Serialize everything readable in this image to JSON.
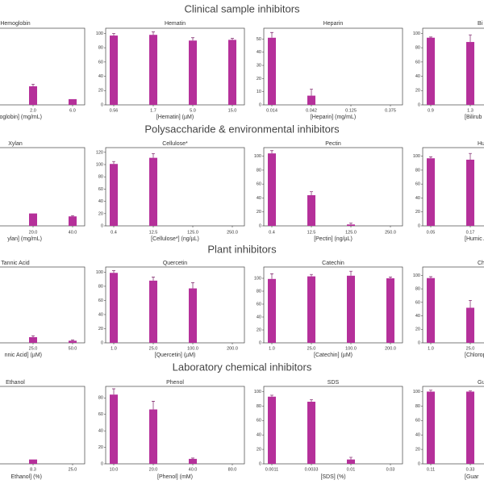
{
  "sections": [
    "Clinical sample inhibitors",
    "Polysaccharide & environmental inhibitors",
    "Plant inhibitors",
    "Laboratory chemical inhibitors"
  ],
  "chart_data": [
    {
      "type": "bar",
      "title": "Hemoglobin",
      "xlabel": "oglobin] (mg/mL)",
      "color": "#b5309a",
      "categories": [
        null,
        null,
        "2.0",
        "6.0"
      ],
      "values": [
        null,
        null,
        26,
        8
      ],
      "errors": [
        null,
        null,
        3,
        null
      ],
      "ylim": [
        0,
        105
      ]
    },
    {
      "type": "bar",
      "title": "Hematin",
      "xlabel": "[Hematin] (µM)",
      "color": "#b5309a",
      "categories": [
        "0.56",
        "1.7",
        "5.0",
        "15.0"
      ],
      "values": [
        97,
        98,
        90,
        91
      ],
      "errors": [
        3,
        4,
        4,
        2
      ],
      "ylim": [
        0,
        105
      ],
      "yticks": [
        0,
        20,
        40,
        60,
        80,
        100
      ]
    },
    {
      "type": "bar",
      "title": "Heparin",
      "xlabel": "[Heparin] (mg/mL)",
      "color": "#b5309a",
      "categories": [
        "0.014",
        "0.042",
        "0.125",
        "0.375"
      ],
      "values": [
        51,
        7,
        0,
        0
      ],
      "errors": [
        4,
        5,
        null,
        null
      ],
      "ylim": [
        0,
        57
      ],
      "yticks": [
        0,
        10,
        20,
        30,
        40,
        50
      ]
    },
    {
      "type": "bar",
      "title": "Bi",
      "xlabel": "[Bilirub",
      "color": "#b5309a",
      "categories": [
        "0.9",
        "1.3",
        null,
        null
      ],
      "values": [
        94,
        88,
        null,
        null
      ],
      "errors": [
        1,
        10,
        null,
        null
      ],
      "ylim": [
        0,
        105
      ],
      "yticks": [
        0,
        20,
        40,
        60,
        80,
        100
      ]
    },
    {
      "type": "bar",
      "title": "Xylan",
      "xlabel": "ylan] (mg/mL)",
      "color": "#b5309a",
      "categories": [
        null,
        null,
        "20.0",
        "40.0"
      ],
      "values": [
        null,
        null,
        17,
        13
      ],
      "errors": [
        null,
        null,
        null,
        1
      ],
      "ylim": [
        0,
        105
      ]
    },
    {
      "type": "bar",
      "title": "Cellulose*",
      "xlabel": "[Cellulose*] (ng/µL)",
      "color": "#b5309a",
      "categories": [
        "0.4",
        "12.5",
        "125.0",
        "250.0"
      ],
      "values": [
        101,
        111,
        0,
        0
      ],
      "errors": [
        4,
        7,
        null,
        null
      ],
      "ylim": [
        0,
        125
      ],
      "yticks": [
        0,
        20,
        40,
        60,
        80,
        100,
        120
      ]
    },
    {
      "type": "bar",
      "title": "Pectin",
      "xlabel": "[Pectin] (ng/µL)",
      "color": "#b5309a",
      "categories": [
        "0.4",
        "12.5",
        "125.0",
        "250.0"
      ],
      "values": [
        104,
        44,
        2,
        0
      ],
      "errors": [
        4,
        5,
        2,
        null
      ],
      "ylim": [
        0,
        110
      ],
      "yticks": [
        0,
        20,
        40,
        60,
        80,
        100
      ]
    },
    {
      "type": "bar",
      "title": "Hu",
      "xlabel": "[Humic A",
      "color": "#b5309a",
      "categories": [
        "0.05",
        "0.17",
        null,
        null
      ],
      "values": [
        97,
        95,
        null,
        null
      ],
      "errors": [
        2,
        9,
        null,
        null
      ],
      "ylim": [
        0,
        110
      ],
      "yticks": [
        0,
        20,
        40,
        60,
        80,
        100
      ]
    },
    {
      "type": "bar",
      "title": "Tannic Acid",
      "xlabel": "nnic Acid] (µM)",
      "color": "#b5309a",
      "categories": [
        null,
        null,
        "25.0",
        "50.0"
      ],
      "values": [
        null,
        null,
        8,
        3
      ],
      "errors": [
        null,
        null,
        2,
        1
      ],
      "ylim": [
        0,
        105
      ]
    },
    {
      "type": "bar",
      "title": "Quercetin",
      "xlabel": "[Quercetin] (µM)",
      "color": "#b5309a",
      "categories": [
        "1.0",
        "25.0",
        "100.0",
        "200.0"
      ],
      "values": [
        99,
        88,
        77,
        0
      ],
      "errors": [
        3,
        5,
        8,
        null
      ],
      "ylim": [
        0,
        105
      ],
      "yticks": [
        0,
        20,
        40,
        60,
        80,
        100
      ]
    },
    {
      "type": "bar",
      "title": "Catechin",
      "xlabel": "[Catechin] (µM)",
      "color": "#b5309a",
      "categories": [
        "1.0",
        "25.0",
        "100.0",
        "200.0"
      ],
      "values": [
        99,
        103,
        104,
        100
      ],
      "errors": [
        8,
        3,
        7,
        2
      ],
      "ylim": [
        0,
        115
      ],
      "yticks": [
        0,
        20,
        40,
        60,
        80,
        100
      ]
    },
    {
      "type": "bar",
      "title": "Chlor",
      "xlabel": "[Chloroph",
      "color": "#b5309a",
      "categories": [
        "1.0",
        "25.0",
        null,
        null
      ],
      "values": [
        96,
        52,
        null,
        null
      ],
      "errors": [
        2,
        11,
        null,
        null
      ],
      "ylim": [
        0,
        110
      ],
      "yticks": [
        0,
        20,
        40,
        60,
        80,
        100
      ]
    },
    {
      "type": "bar",
      "title": "Ethanol",
      "xlabel": "Ethanol] (%)",
      "color": "#b5309a",
      "categories": [
        null,
        null,
        "8.3",
        "25.0"
      ],
      "values": [
        null,
        null,
        6,
        0
      ],
      "errors": [
        null,
        null,
        null,
        null
      ],
      "ylim": [
        0,
        105
      ]
    },
    {
      "type": "bar",
      "title": "Phenol",
      "xlabel": "[Phenol] (mM)",
      "color": "#b5309a",
      "categories": [
        "10.0",
        "20.0",
        "40.0",
        "80.0"
      ],
      "values": [
        84,
        66,
        6,
        0
      ],
      "errors": [
        7,
        10,
        1,
        null
      ],
      "ylim": [
        0,
        92
      ],
      "yticks": [
        0,
        20,
        40,
        60,
        80
      ]
    },
    {
      "type": "bar",
      "title": "SDS",
      "xlabel": "[SDS] (%)",
      "color": "#b5309a",
      "categories": [
        "0.0011",
        "0.0033",
        "0.01",
        "0.03"
      ],
      "values": [
        93,
        86,
        6,
        0
      ],
      "errors": [
        2,
        3,
        3,
        null
      ],
      "ylim": [
        0,
        105
      ],
      "yticks": [
        0,
        20,
        40,
        60,
        80,
        100
      ]
    },
    {
      "type": "bar",
      "title": "Gu",
      "xlabel": "[Guar",
      "color": "#b5309a",
      "categories": [
        "0.11",
        "0.33",
        null,
        null
      ],
      "values": [
        100,
        100,
        null,
        null
      ],
      "errors": [
        2,
        1,
        null,
        null
      ],
      "ylim": [
        0,
        105
      ],
      "yticks": [
        0,
        20,
        40,
        60,
        80,
        100
      ]
    }
  ]
}
